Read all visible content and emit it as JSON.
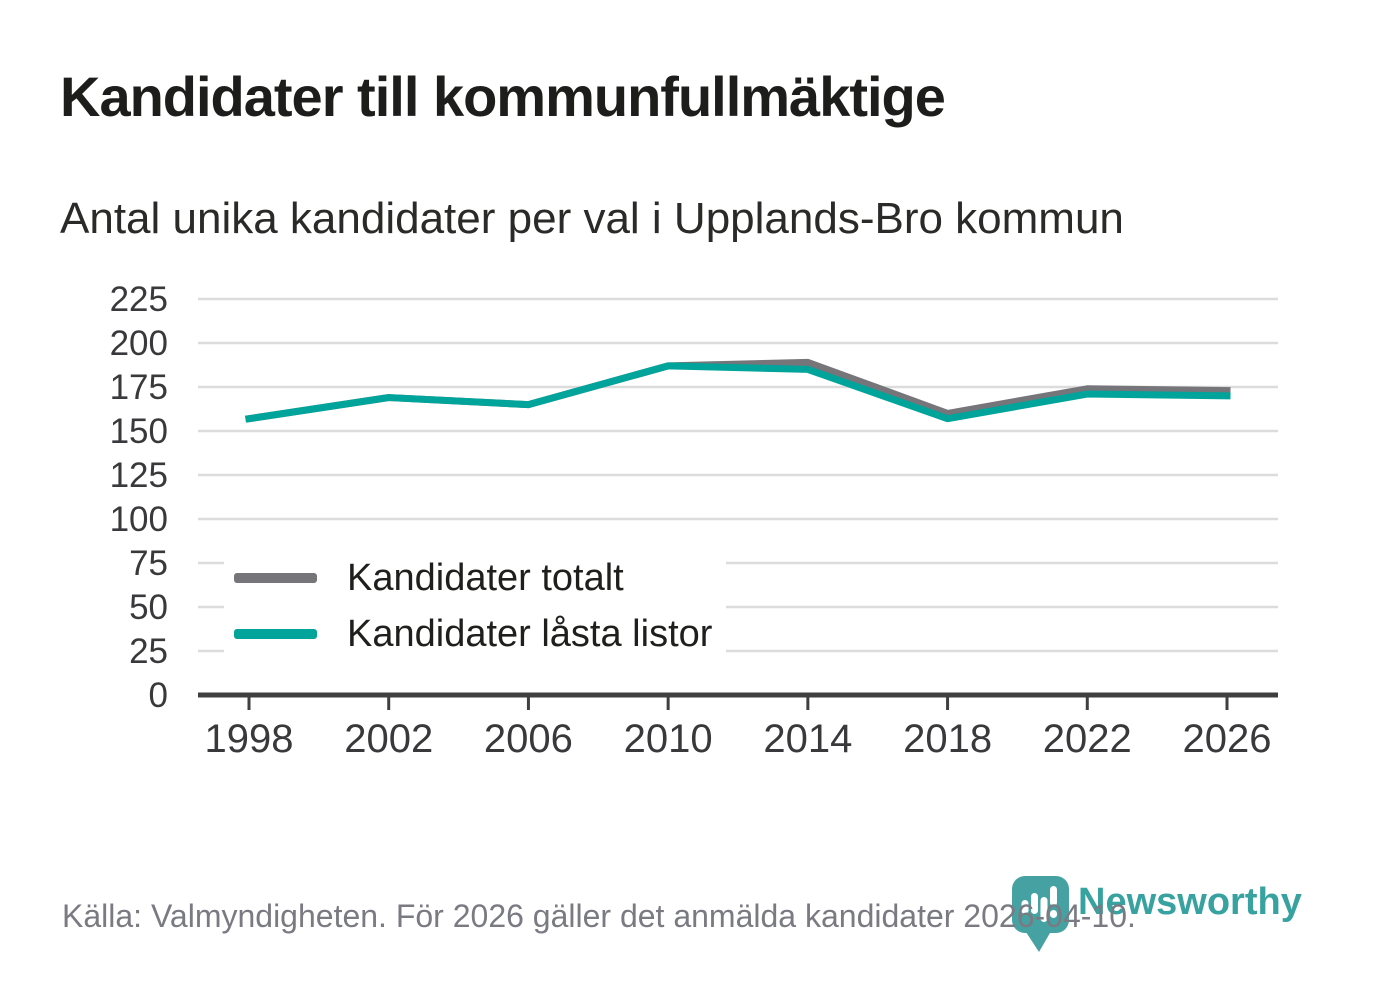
{
  "title": "Kandidater till kommunfullmäktige",
  "subtitle": "Antal unika kandidater per val i Upplands-Bro kommun",
  "footer": {
    "source_text": "Källa: Valmyndigheten. För 2026 gäller det anmälda kandidater 2026-04-10."
  },
  "branding": {
    "name": "Newsworthy",
    "logo_icon": "newsworthy-speech-bubble-barchart-icon",
    "color": "#3fa3a1"
  },
  "colors": {
    "series_total": "#75757a",
    "series_locked": "#00a49b",
    "gridline": "#dcdcdc",
    "axis": "#3f3f3f",
    "tick_text": "#39393c",
    "legend_text": "#1f1f1d",
    "footer_text": "#7a7a82"
  },
  "chart_data": {
    "type": "line",
    "title": "Kandidater till kommunfullmäktige",
    "subtitle": "Antal unika kandidater per val i Upplands-Bro kommun",
    "categories": [
      "1998",
      "2002",
      "2006",
      "2010",
      "2014",
      "2018",
      "2022",
      "2026"
    ],
    "series": [
      {
        "name": "Kandidater totalt",
        "color": "#75757a",
        "values": [
          157,
          169,
          165,
          187,
          189,
          160,
          174,
          173
        ]
      },
      {
        "name": "Kandidater låsta listor",
        "color": "#00a49b",
        "values": [
          157,
          169,
          165,
          187,
          185,
          157,
          171,
          170
        ]
      }
    ],
    "xlabel": "",
    "ylabel": "",
    "ylim": [
      0,
      225
    ],
    "yticks": [
      0,
      25,
      50,
      75,
      100,
      125,
      150,
      175,
      200,
      225
    ],
    "grid": "horizontal",
    "legend_position": "inside-bottom-left"
  }
}
